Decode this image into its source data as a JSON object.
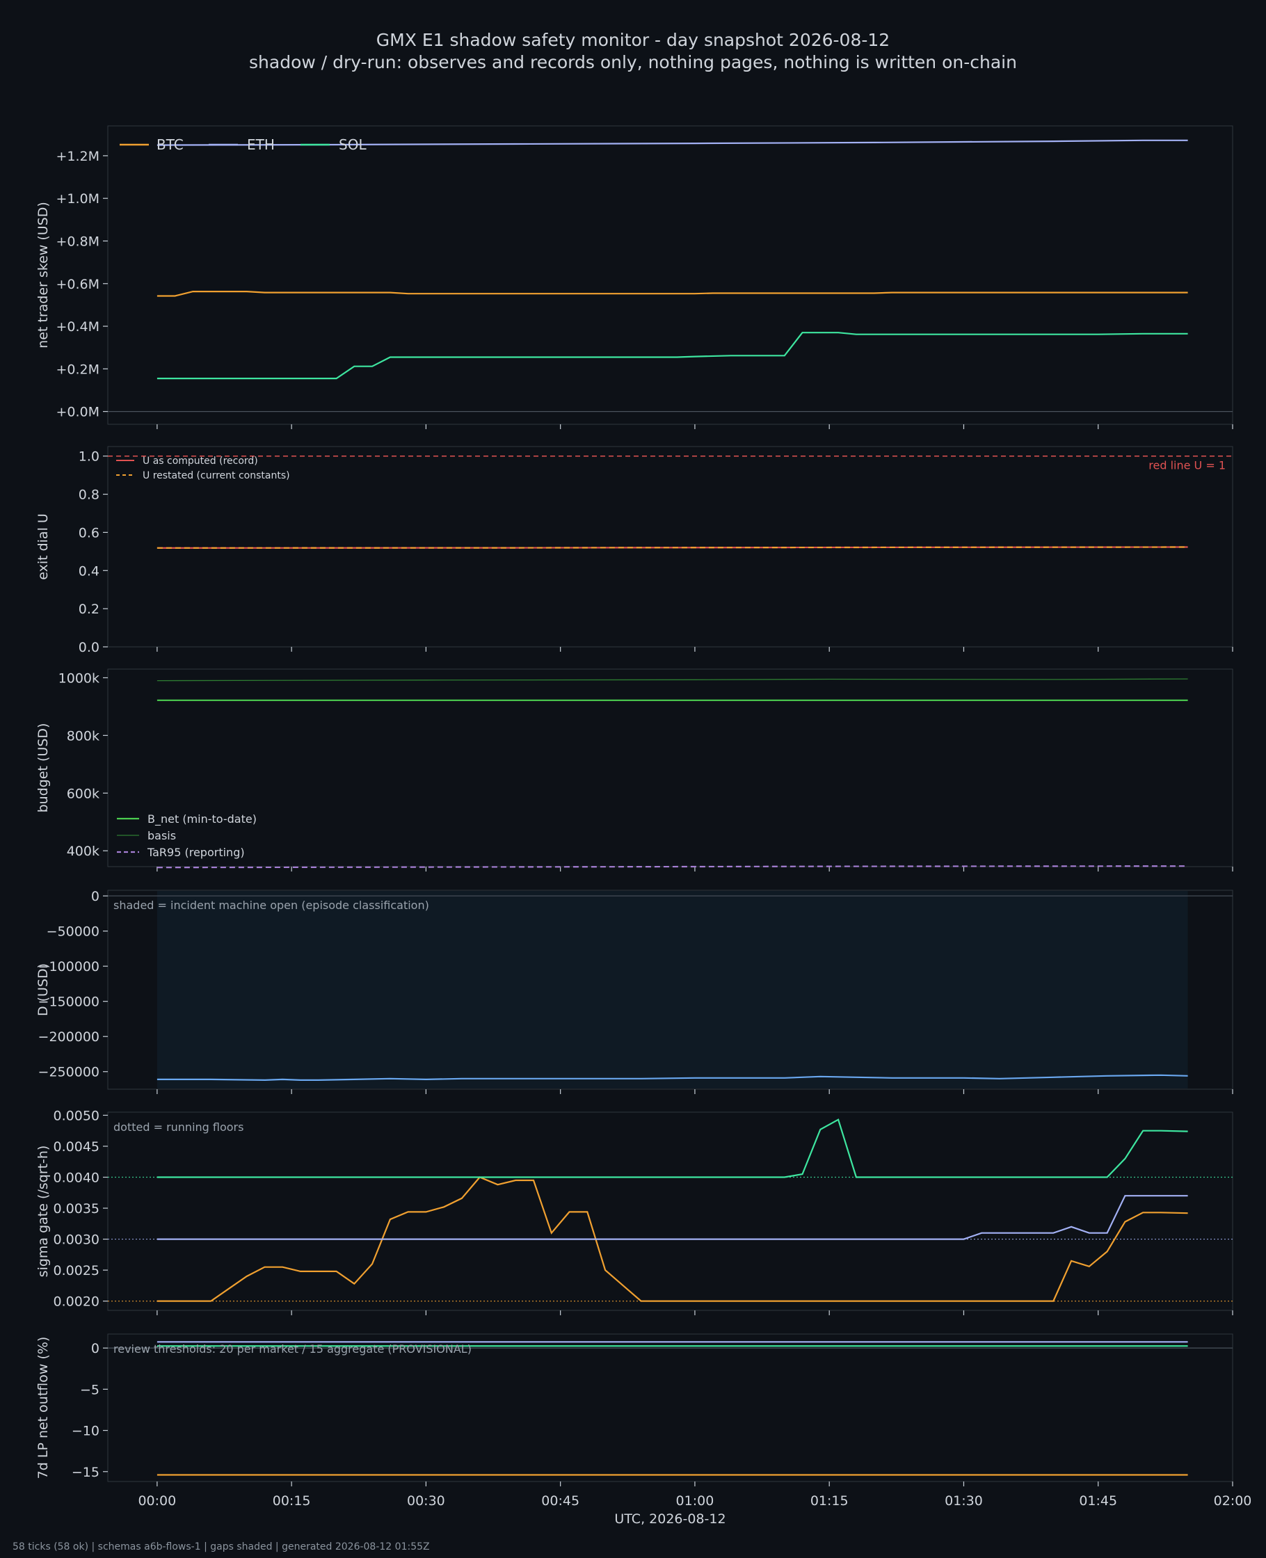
{
  "header": {
    "title": "GMX E1 shadow safety monitor - day snapshot 2026-08-12",
    "subtitle": "shadow / dry-run: observes and records only, nothing pages, nothing is written on-chain"
  },
  "footer": {
    "text": "58 ticks (58 ok) | schemas a6b-flows-1 | gaps shaded | generated 2026-08-12 01:55Z"
  },
  "colors": {
    "background": "#0d1117",
    "BTC": "#f0a030",
    "ETH": "#a3b1f5",
    "SOL": "#3ee6a0",
    "red": "#e05252",
    "green": "#4ccf50",
    "basis": "#2e7d32",
    "tar": "#a57fd4",
    "D": "#6aa8f0",
    "shade": "#0f1a24"
  },
  "chart_data": [
    {
      "type": "line",
      "ylabel": "net trader skew (USD)",
      "ylim": [
        -60000,
        1340000
      ],
      "yticks": [
        0,
        200000,
        400000,
        600000,
        800000,
        1000000,
        1200000
      ],
      "ytick_labels": [
        "+0.0M",
        "+0.2M",
        "+0.4M",
        "+0.6M",
        "+0.8M",
        "+1.0M",
        "+1.2M"
      ],
      "legend": [
        "BTC",
        "ETH",
        "SOL"
      ],
      "legend_position": "top-left",
      "series": [
        {
          "name": "BTC",
          "color": "#f0a030",
          "points": [
            [
              0,
              542000
            ],
            [
              2,
              542000
            ],
            [
              4,
              563000
            ],
            [
              10,
              563000
            ],
            [
              12,
              558000
            ],
            [
              26,
              558000
            ],
            [
              28,
              553000
            ],
            [
              60,
              553000
            ],
            [
              62,
              555000
            ],
            [
              80,
              555000
            ],
            [
              82,
              558000
            ],
            [
              105,
              558000
            ],
            [
              115,
              558000
            ]
          ]
        },
        {
          "name": "ETH",
          "color": "#a3b1f5",
          "points": [
            [
              0,
              1250000
            ],
            [
              20,
              1252000
            ],
            [
              40,
              1255000
            ],
            [
              60,
              1258000
            ],
            [
              80,
              1262000
            ],
            [
              100,
              1268000
            ],
            [
              110,
              1272000
            ],
            [
              115,
              1272000
            ]
          ]
        },
        {
          "name": "SOL",
          "color": "#3ee6a0",
          "points": [
            [
              0,
              155000
            ],
            [
              20,
              155000
            ],
            [
              22,
              212000
            ],
            [
              24,
              212000
            ],
            [
              26,
              255000
            ],
            [
              58,
              255000
            ],
            [
              60,
              258000
            ],
            [
              64,
              262000
            ],
            [
              70,
              262000
            ],
            [
              72,
              370000
            ],
            [
              76,
              370000
            ],
            [
              78,
              362000
            ],
            [
              105,
              362000
            ],
            [
              110,
              365000
            ],
            [
              115,
              365000
            ]
          ]
        }
      ]
    },
    {
      "type": "line",
      "ylabel": "exit dial U",
      "ylim": [
        0,
        1.05
      ],
      "yticks": [
        0.0,
        0.2,
        0.4,
        0.6,
        0.8,
        1.0
      ],
      "ytick_labels": [
        "0.0",
        "0.2",
        "0.4",
        "0.6",
        "0.8",
        "1.0"
      ],
      "legend": [
        "U as computed (record)",
        "U restated (current constants)"
      ],
      "legend_position": "top-left",
      "annotation": "red line U = 1",
      "hline": 1.0,
      "series": [
        {
          "name": "U as computed (record)",
          "color": "#e05252",
          "points": [
            [
              0,
              0.518
            ],
            [
              40,
              0.519
            ],
            [
              70,
              0.521
            ],
            [
              115,
              0.523
            ]
          ]
        },
        {
          "name": "U restated (current constants)",
          "color": "#f0a030",
          "points": [
            [
              0,
              0.518
            ],
            [
              40,
              0.519
            ],
            [
              70,
              0.521
            ],
            [
              115,
              0.523
            ]
          ]
        }
      ]
    },
    {
      "type": "line",
      "ylabel": "budget (USD)",
      "ylim": [
        345000,
        1030000
      ],
      "yticks": [
        400000,
        600000,
        800000,
        1000000
      ],
      "ytick_labels": [
        "400k",
        "600k",
        "800k",
        "1000k"
      ],
      "legend": [
        "B_net (min-to-date)",
        "basis",
        "TaR95 (reporting)"
      ],
      "legend_position": "lower-left",
      "series": [
        {
          "name": "B_net (min-to-date)",
          "color": "#4ccf50",
          "points": [
            [
              0,
              922000
            ],
            [
              115,
              922000
            ]
          ]
        },
        {
          "name": "basis",
          "color": "#2e7d32",
          "points": [
            [
              0,
              990000
            ],
            [
              30,
              992000
            ],
            [
              60,
              993000
            ],
            [
              75,
              995000
            ],
            [
              100,
              994000
            ],
            [
              115,
              996000
            ]
          ]
        },
        {
          "name": "TaR95 (reporting)",
          "color": "#a57fd4",
          "points": [
            [
              0,
              342000
            ],
            [
              20,
              343000
            ],
            [
              40,
              344000
            ],
            [
              60,
              345000
            ],
            [
              75,
              346000
            ],
            [
              115,
              347000
            ]
          ]
        }
      ]
    },
    {
      "type": "area",
      "ylabel": "D (USD)",
      "ylim": [
        -275000,
        8000
      ],
      "yticks": [
        0,
        -50000,
        -100000,
        -150000,
        -200000,
        -250000
      ],
      "ytick_labels": [
        "0",
        "−50000",
        "−100000",
        "−150000",
        "−200000",
        "−250000"
      ],
      "annotation": "shaded = incident machine open (episode classification)",
      "shaded_x": [
        0,
        115
      ],
      "series": [
        {
          "name": "D",
          "color": "#6aa8f0",
          "points": [
            [
              0,
              -261000
            ],
            [
              6,
              -261000
            ],
            [
              12,
              -262000
            ],
            [
              14,
              -261000
            ],
            [
              16,
              -262000
            ],
            [
              18,
              -262000
            ],
            [
              22,
              -261000
            ],
            [
              26,
              -260000
            ],
            [
              30,
              -261000
            ],
            [
              34,
              -260000
            ],
            [
              40,
              -260000
            ],
            [
              46,
              -260000
            ],
            [
              48,
              -260000
            ],
            [
              54,
              -260000
            ],
            [
              60,
              -259000
            ],
            [
              66,
              -259000
            ],
            [
              70,
              -259000
            ],
            [
              74,
              -257000
            ],
            [
              78,
              -258000
            ],
            [
              82,
              -259000
            ],
            [
              90,
              -259000
            ],
            [
              94,
              -260000
            ],
            [
              100,
              -258000
            ],
            [
              106,
              -256000
            ],
            [
              112,
              -255000
            ],
            [
              115,
              -256000
            ]
          ]
        }
      ]
    },
    {
      "type": "line",
      "ylabel": "sigma gate (/sqrt-h)",
      "ylim": [
        0.00185,
        0.00505
      ],
      "yticks": [
        0.002,
        0.0025,
        0.003,
        0.0035,
        0.004,
        0.0045,
        0.005
      ],
      "ytick_labels": [
        "0.0020",
        "0.0025",
        "0.0030",
        "0.0035",
        "0.0040",
        "0.0045",
        "0.0050"
      ],
      "annotation": "dotted = running floors",
      "floors": [
        {
          "name": "BTC floor",
          "value": 0.002,
          "color": "#f0a030"
        },
        {
          "name": "ETH floor",
          "value": 0.003,
          "color": "#a3b1f5"
        },
        {
          "name": "SOL floor",
          "value": 0.004,
          "color": "#3ee6a0"
        }
      ],
      "series": [
        {
          "name": "BTC",
          "color": "#f0a030",
          "points": [
            [
              0,
              0.002
            ],
            [
              6,
              0.002
            ],
            [
              8,
              0.0022
            ],
            [
              10,
              0.0024
            ],
            [
              12,
              0.00255
            ],
            [
              14,
              0.00255
            ],
            [
              16,
              0.00248
            ],
            [
              20,
              0.00248
            ],
            [
              22,
              0.00228
            ],
            [
              24,
              0.0026
            ],
            [
              26,
              0.00332
            ],
            [
              28,
              0.00344
            ],
            [
              30,
              0.00344
            ],
            [
              32,
              0.00352
            ],
            [
              34,
              0.00366
            ],
            [
              36,
              0.004
            ],
            [
              38,
              0.00388
            ],
            [
              40,
              0.00395
            ],
            [
              42,
              0.00395
            ],
            [
              44,
              0.0031
            ],
            [
              46,
              0.00344
            ],
            [
              48,
              0.00344
            ],
            [
              50,
              0.0025
            ],
            [
              52,
              0.00225
            ],
            [
              54,
              0.002
            ],
            [
              58,
              0.002
            ],
            [
              86,
              0.002
            ],
            [
              100,
              0.002
            ],
            [
              102,
              0.00265
            ],
            [
              104,
              0.00256
            ],
            [
              106,
              0.0028
            ],
            [
              108,
              0.00328
            ],
            [
              110,
              0.00343
            ],
            [
              112,
              0.00343
            ],
            [
              115,
              0.00342
            ]
          ]
        },
        {
          "name": "ETH",
          "color": "#a3b1f5",
          "points": [
            [
              0,
              0.003
            ],
            [
              30,
              0.003
            ],
            [
              60,
              0.003
            ],
            [
              90,
              0.003
            ],
            [
              92,
              0.0031
            ],
            [
              100,
              0.0031
            ],
            [
              102,
              0.0032
            ],
            [
              104,
              0.0031
            ],
            [
              106,
              0.0031
            ],
            [
              108,
              0.0037
            ],
            [
              110,
              0.0037
            ],
            [
              115,
              0.0037
            ]
          ]
        },
        {
          "name": "SOL",
          "color": "#3ee6a0",
          "points": [
            [
              0,
              0.004
            ],
            [
              70,
              0.004
            ],
            [
              72,
              0.00405
            ],
            [
              74,
              0.00477
            ],
            [
              76,
              0.00493
            ],
            [
              78,
              0.004
            ],
            [
              86,
              0.004
            ],
            [
              106,
              0.004
            ],
            [
              108,
              0.0043
            ],
            [
              110,
              0.00475
            ],
            [
              112,
              0.00475
            ],
            [
              115,
              0.00474
            ]
          ]
        }
      ]
    },
    {
      "type": "line",
      "ylabel": "7d LP net outflow (%)",
      "ylim": [
        -16.2,
        1.7
      ],
      "yticks": [
        0,
        -5,
        -10,
        -15
      ],
      "ytick_labels": [
        "0",
        "−5",
        "−10",
        "−15"
      ],
      "annotation": "review thresholds: 20 per market / 15 aggregate (PROVISIONAL)",
      "series": [
        {
          "name": "ETH",
          "color": "#a3b1f5",
          "points": [
            [
              0,
              0.75
            ],
            [
              115,
              0.75
            ]
          ]
        },
        {
          "name": "SOL",
          "color": "#3ee6a0",
          "points": [
            [
              0,
              0.25
            ],
            [
              115,
              0.25
            ]
          ]
        },
        {
          "name": "BTC",
          "color": "#f0a030",
          "points": [
            [
              0,
              -15.4
            ],
            [
              115,
              -15.4
            ]
          ]
        }
      ]
    }
  ],
  "x_axis": {
    "label": "UTC, 2026-08-12",
    "xlim": [
      -5.5,
      120
    ],
    "ticks": [
      0,
      15,
      30,
      45,
      60,
      75,
      90,
      105,
      120
    ],
    "tick_labels": [
      "00:00",
      "00:15",
      "00:30",
      "00:45",
      "01:00",
      "01:15",
      "01:30",
      "01:45",
      "02:00"
    ]
  }
}
